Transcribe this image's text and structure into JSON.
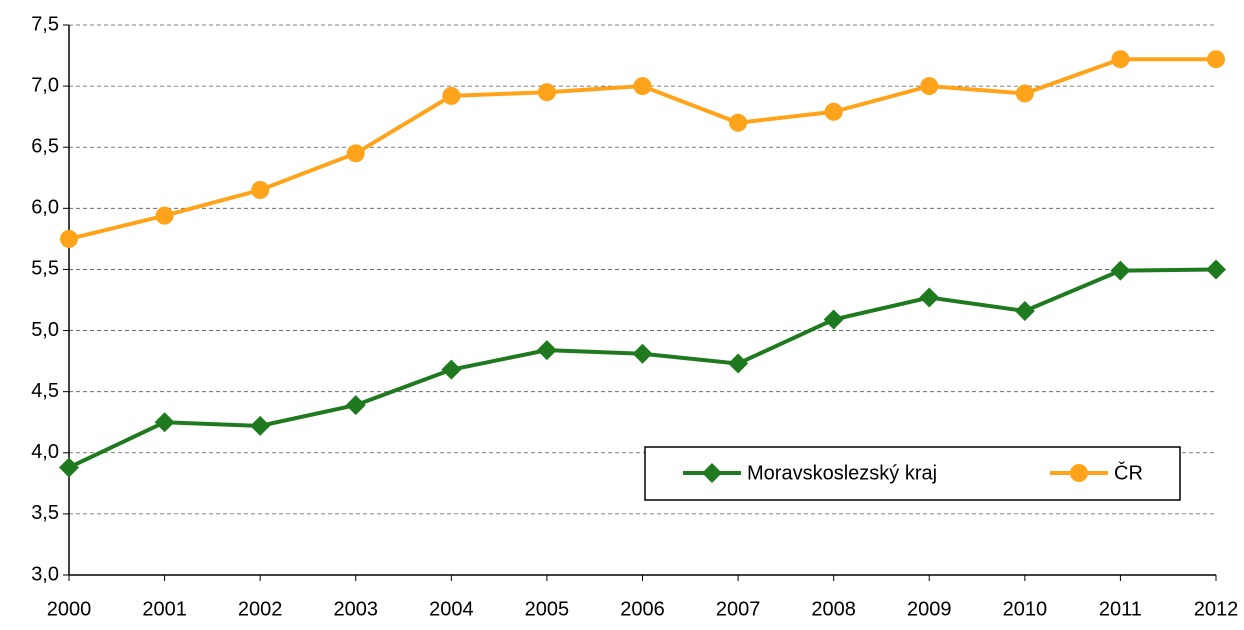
{
  "chart_data": {
    "type": "line",
    "categories": [
      "2000",
      "2001",
      "2002",
      "2003",
      "2004",
      "2005",
      "2006",
      "2007",
      "2008",
      "2009",
      "2010",
      "2011",
      "2012"
    ],
    "series": [
      {
        "name": "Moravskoslezský kraj",
        "color": "#1f7a1f",
        "marker": "diamond",
        "values": [
          3.88,
          4.25,
          4.22,
          4.39,
          4.68,
          4.84,
          4.81,
          4.73,
          5.09,
          5.27,
          5.16,
          5.49,
          5.5
        ]
      },
      {
        "name": "ČR",
        "color": "#ffa31a",
        "marker": "circle",
        "values": [
          5.75,
          5.94,
          6.15,
          6.45,
          6.92,
          6.95,
          7.0,
          6.7,
          6.79,
          7.0,
          6.94,
          7.22,
          7.22
        ]
      }
    ],
    "ylim": [
      3,
      7.5
    ],
    "yticks": [
      {
        "value": 3,
        "label": "3,0"
      },
      {
        "value": 3.5,
        "label": "3,5"
      },
      {
        "value": 4,
        "label": "4,0"
      },
      {
        "value": 4.5,
        "label": "4,5"
      },
      {
        "value": 5,
        "label": "5,0"
      },
      {
        "value": 5.5,
        "label": "5,5"
      },
      {
        "value": 6,
        "label": "6,0"
      },
      {
        "value": 6.5,
        "label": "6,5"
      },
      {
        "value": 7,
        "label": "7,0"
      },
      {
        "value": 7.5,
        "label": "7,5"
      }
    ],
    "grid": true,
    "legend": "lower right"
  }
}
